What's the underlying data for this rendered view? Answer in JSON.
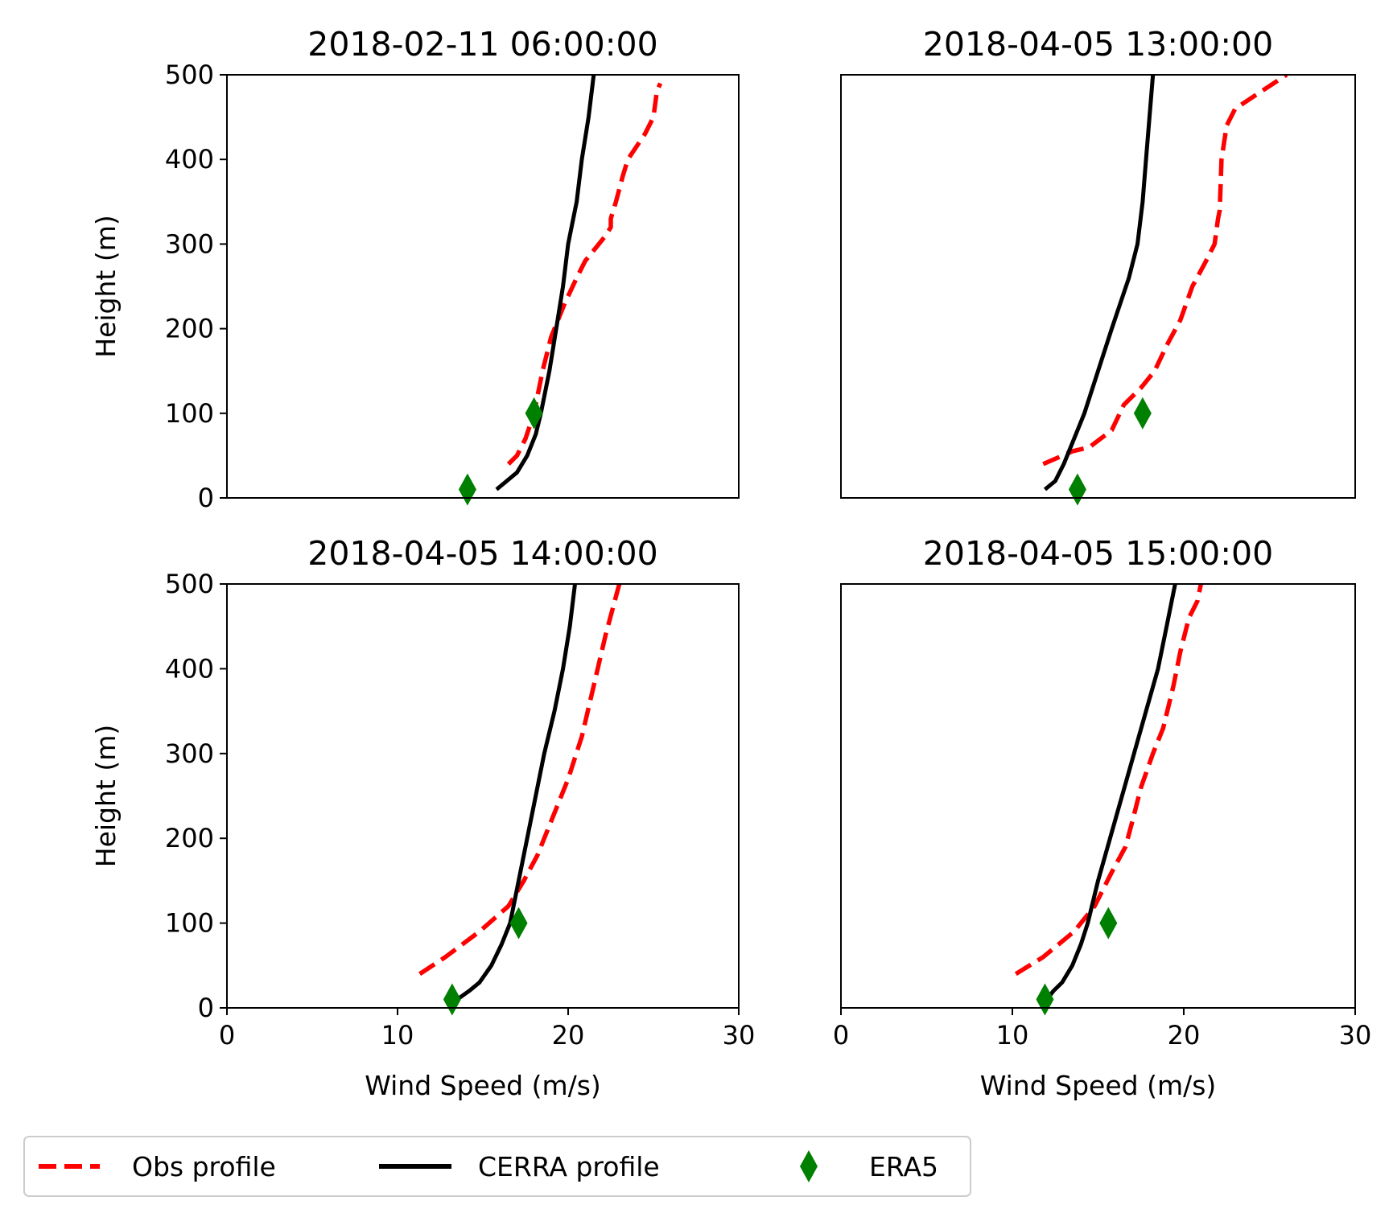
{
  "legend": {
    "placement": "bottom-left",
    "entries": [
      {
        "key": "obs",
        "label": "Obs profile",
        "color": "#ff0000",
        "style": "dashed"
      },
      {
        "key": "cerra",
        "label": "CERRA profile",
        "color": "#000000",
        "style": "solid"
      },
      {
        "key": "era5",
        "label": "ERA5",
        "color": "#008000",
        "style": "diamond-marker"
      }
    ]
  },
  "chart_data": [
    {
      "type": "line",
      "title": "2018-02-11 06:00:00",
      "xlabel": "",
      "ylabel": "Height (m)",
      "xlim": [
        0,
        30
      ],
      "ylim": [
        0,
        500
      ],
      "xticks": [
        0,
        10,
        20,
        30
      ],
      "yticks": [
        0,
        100,
        200,
        300,
        400,
        500
      ],
      "show_xticks": false,
      "show_yticks": true,
      "grid": false,
      "series": [
        {
          "name": "Obs profile",
          "points": [
            [
              16.5,
              40
            ],
            [
              17.0,
              50
            ],
            [
              17.5,
              70
            ],
            [
              18.0,
              100
            ],
            [
              18.5,
              150
            ],
            [
              19.0,
              190
            ],
            [
              19.8,
              230
            ],
            [
              20.5,
              260
            ],
            [
              21.0,
              280
            ],
            [
              22.2,
              310
            ],
            [
              22.5,
              320
            ],
            [
              22.5,
              330
            ],
            [
              22.8,
              350
            ],
            [
              23.2,
              380
            ],
            [
              23.5,
              400
            ],
            [
              24.5,
              430
            ],
            [
              25.0,
              450
            ],
            [
              25.2,
              480
            ],
            [
              25.4,
              490
            ]
          ]
        },
        {
          "name": "CERRA profile",
          "points": [
            [
              15.8,
              10
            ],
            [
              17.0,
              30
            ],
            [
              17.6,
              50
            ],
            [
              18.1,
              75
            ],
            [
              18.4,
              100
            ],
            [
              18.9,
              150
            ],
            [
              19.3,
              200
            ],
            [
              19.7,
              250
            ],
            [
              20.0,
              300
            ],
            [
              20.5,
              350
            ],
            [
              20.8,
              400
            ],
            [
              21.2,
              450
            ],
            [
              21.5,
              500
            ]
          ]
        },
        {
          "name": "ERA5",
          "points": [
            [
              14.1,
              10
            ],
            [
              18.0,
              100
            ]
          ]
        }
      ]
    },
    {
      "type": "line",
      "title": "2018-04-05 13:00:00",
      "xlabel": "",
      "ylabel": "",
      "xlim": [
        0,
        30
      ],
      "ylim": [
        0,
        500
      ],
      "xticks": [
        0,
        10,
        20,
        30
      ],
      "yticks": [
        0,
        100,
        200,
        300,
        400,
        500
      ],
      "show_xticks": false,
      "show_yticks": false,
      "grid": false,
      "series": [
        {
          "name": "Obs profile",
          "points": [
            [
              11.8,
              40
            ],
            [
              13.5,
              55
            ],
            [
              14.5,
              60
            ],
            [
              15.8,
              80
            ],
            [
              16.5,
              110
            ],
            [
              17.5,
              130
            ],
            [
              18.3,
              150
            ],
            [
              19.0,
              180
            ],
            [
              19.8,
              210
            ],
            [
              20.5,
              250
            ],
            [
              21.3,
              280
            ],
            [
              21.8,
              300
            ],
            [
              22.0,
              330
            ],
            [
              22.1,
              340
            ],
            [
              22.2,
              400
            ],
            [
              22.5,
              440
            ],
            [
              23.0,
              460
            ],
            [
              24.5,
              480
            ],
            [
              26.0,
              500
            ]
          ]
        },
        {
          "name": "CERRA profile",
          "points": [
            [
              11.9,
              10
            ],
            [
              12.5,
              20
            ],
            [
              13.0,
              40
            ],
            [
              13.6,
              70
            ],
            [
              14.2,
              100
            ],
            [
              15.0,
              150
            ],
            [
              15.8,
              200
            ],
            [
              16.8,
              260
            ],
            [
              17.3,
              300
            ],
            [
              17.6,
              350
            ],
            [
              17.8,
              400
            ],
            [
              18.0,
              450
            ],
            [
              18.2,
              500
            ]
          ]
        },
        {
          "name": "ERA5",
          "points": [
            [
              13.8,
              10
            ],
            [
              17.6,
              100
            ]
          ]
        }
      ]
    },
    {
      "type": "line",
      "title": "2018-04-05 14:00:00",
      "xlabel": "Wind Speed (m/s)",
      "ylabel": "Height (m)",
      "xlim": [
        0,
        30
      ],
      "ylim": [
        0,
        500
      ],
      "xticks": [
        0,
        10,
        20,
        30
      ],
      "yticks": [
        0,
        100,
        200,
        300,
        400,
        500
      ],
      "show_xticks": true,
      "show_yticks": true,
      "grid": false,
      "series": [
        {
          "name": "Obs profile",
          "points": [
            [
              11.3,
              40
            ],
            [
              12.8,
              60
            ],
            [
              14.8,
              90
            ],
            [
              16.5,
              120
            ],
            [
              17.4,
              150
            ],
            [
              18.2,
              180
            ],
            [
              19.0,
              220
            ],
            [
              20.0,
              270
            ],
            [
              20.8,
              320
            ],
            [
              21.5,
              380
            ],
            [
              22.2,
              440
            ],
            [
              23.0,
              500
            ]
          ]
        },
        {
          "name": "CERRA profile",
          "points": [
            [
              13.5,
              10
            ],
            [
              14.2,
              20
            ],
            [
              14.8,
              30
            ],
            [
              15.5,
              50
            ],
            [
              16.1,
              75
            ],
            [
              16.6,
              100
            ],
            [
              17.1,
              150
            ],
            [
              17.6,
              200
            ],
            [
              18.1,
              250
            ],
            [
              18.6,
              300
            ],
            [
              19.2,
              350
            ],
            [
              19.7,
              400
            ],
            [
              20.1,
              450
            ],
            [
              20.4,
              500
            ]
          ]
        },
        {
          "name": "ERA5",
          "points": [
            [
              13.2,
              10
            ],
            [
              17.1,
              100
            ]
          ]
        }
      ]
    },
    {
      "type": "line",
      "title": "2018-04-05 15:00:00",
      "xlabel": "Wind Speed (m/s)",
      "ylabel": "",
      "xlim": [
        0,
        30
      ],
      "ylim": [
        0,
        500
      ],
      "xticks": [
        0,
        10,
        20,
        30
      ],
      "yticks": [
        0,
        100,
        200,
        300,
        400,
        500
      ],
      "show_xticks": true,
      "show_yticks": false,
      "grid": false,
      "series": [
        {
          "name": "Obs profile",
          "points": [
            [
              10.2,
              40
            ],
            [
              11.8,
              60
            ],
            [
              13.6,
              90
            ],
            [
              14.8,
              120
            ],
            [
              15.8,
              160
            ],
            [
              16.6,
              190
            ],
            [
              17.0,
              220
            ],
            [
              17.5,
              260
            ],
            [
              18.2,
              300
            ],
            [
              18.8,
              330
            ],
            [
              19.4,
              380
            ],
            [
              19.8,
              420
            ],
            [
              20.3,
              460
            ],
            [
              20.8,
              480
            ],
            [
              21.0,
              500
            ]
          ]
        },
        {
          "name": "CERRA profile",
          "points": [
            [
              12.0,
              10
            ],
            [
              12.4,
              20
            ],
            [
              12.9,
              30
            ],
            [
              13.5,
              50
            ],
            [
              14.0,
              75
            ],
            [
              14.4,
              100
            ],
            [
              15.0,
              150
            ],
            [
              15.7,
              200
            ],
            [
              16.4,
              250
            ],
            [
              17.1,
              300
            ],
            [
              17.8,
              350
            ],
            [
              18.5,
              400
            ],
            [
              19.0,
              450
            ],
            [
              19.5,
              500
            ]
          ]
        },
        {
          "name": "ERA5",
          "points": [
            [
              11.9,
              10
            ],
            [
              15.6,
              100
            ]
          ]
        }
      ]
    }
  ]
}
